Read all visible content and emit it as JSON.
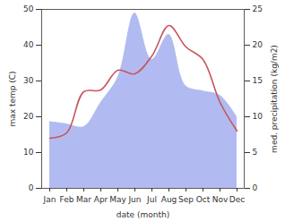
{
  "chart_data": {
    "type": "line",
    "x_label": "date (month)",
    "y_label": "max temp (C)",
    "y2_label": "med. precipitation (kg/m2)",
    "categories": [
      "Jan",
      "Feb",
      "Mar",
      "Apr",
      "May",
      "Jun",
      "Jul",
      "Aug",
      "Sep",
      "Oct",
      "Nov",
      "Dec"
    ],
    "series": [
      {
        "type": "area",
        "axis": "y2",
        "color": "#b1bbf1",
        "values": [
          9.3,
          9,
          8.6,
          12,
          15.5,
          24.5,
          18,
          21.5,
          14.3,
          13.6,
          13,
          10
        ]
      },
      {
        "type": "line",
        "color": "#c8555a",
        "values": [
          14,
          15.5,
          27,
          27.5,
          33,
          32,
          37,
          45.5,
          39.5,
          36,
          24,
          16
        ]
      }
    ],
    "ylim": [
      0,
      50
    ],
    "yticks": [
      0,
      10,
      20,
      30,
      40,
      50
    ],
    "y2lim": [
      0,
      25
    ],
    "y2ticks": [
      0,
      5,
      10,
      15,
      20,
      25
    ]
  }
}
